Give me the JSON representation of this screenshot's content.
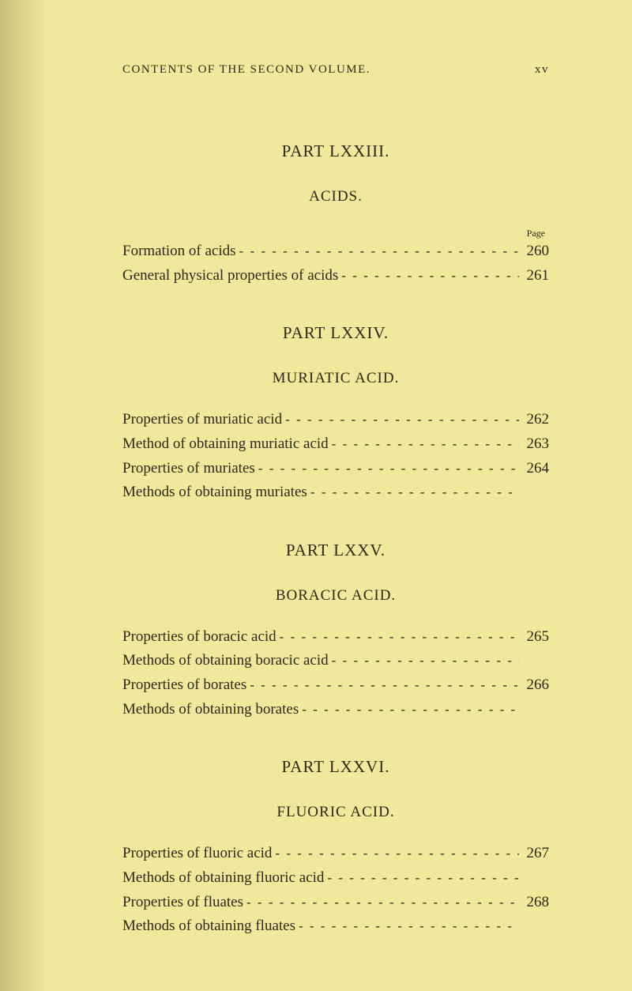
{
  "header": {
    "running_title": "CONTENTS OF THE SECOND VOLUME.",
    "page_marker": "xv"
  },
  "page_label": "Page",
  "leader_char": "- - - - - - - - - - - - - - - - - - - - - - - - - - - - - - - - - -",
  "parts": [
    {
      "part_title": "PART LXXIII.",
      "section_title": "ACIDS.",
      "show_page_label": true,
      "entries": [
        {
          "text": "Formation of acids",
          "page": "260"
        },
        {
          "text": "General physical properties of acids",
          "page": "261"
        }
      ]
    },
    {
      "part_title": "PART LXXIV.",
      "section_title": "MURIATIC ACID.",
      "show_page_label": false,
      "entries": [
        {
          "text": "Properties of muriatic acid",
          "page": "262"
        },
        {
          "text": "Method of obtaining muriatic acid",
          "page": "263"
        },
        {
          "text": "Properties of muriates",
          "page": "264"
        },
        {
          "text": "Methods of obtaining muriates",
          "page": ""
        }
      ]
    },
    {
      "part_title": "PART LXXV.",
      "section_title": "BORACIC ACID.",
      "show_page_label": false,
      "entries": [
        {
          "text": "Properties of boracic acid",
          "page": "265"
        },
        {
          "text": "Methods of obtaining boracic acid",
          "page": ""
        },
        {
          "text": "Properties of borates",
          "page": "266"
        },
        {
          "text": "Methods of obtaining borates",
          "page": ""
        }
      ]
    },
    {
      "part_title": "PART LXXVI.",
      "section_title": "FLUORIC ACID.",
      "show_page_label": false,
      "entries": [
        {
          "text": "Properties of fluoric acid",
          "page": "267"
        },
        {
          "text": "Methods of obtaining fluoric acid",
          "page": ""
        },
        {
          "text": "Properties of fluates",
          "page": "268"
        },
        {
          "text": "Methods of obtaining fluates",
          "page": ""
        }
      ]
    }
  ]
}
